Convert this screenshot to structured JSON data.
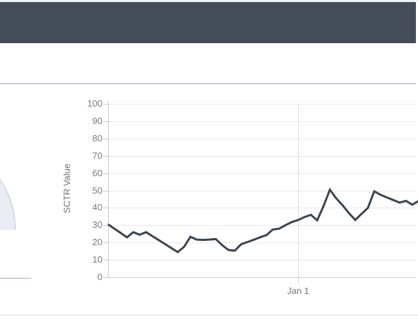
{
  "page": {
    "background": "#ffffff",
    "top_strip_color": "#eff2f6",
    "header": {
      "background": "#454c59"
    },
    "divider_top_color": "#c7cdd4",
    "divider_bottom_color": "#e0e4e8"
  },
  "gauge_panel": {
    "arc_fill": "#e9edf3",
    "arc_border": "#d4dce5",
    "baseline_color": "#b3c2cf"
  },
  "chart_data": {
    "type": "line",
    "title": "",
    "xlabel": "",
    "ylabel": "SCTR Value",
    "ylim": [
      0,
      100
    ],
    "y_ticks": [
      100,
      90,
      80,
      70,
      60,
      50,
      40,
      30,
      20,
      10,
      0
    ],
    "x_tick_labels": [
      "Jan 1"
    ],
    "x_tick_index": 30,
    "grid": true,
    "legend": "none",
    "line_color": "#3a4450",
    "grid_color": "#e8e8e8",
    "axis_color": "#c9c9c9",
    "vgrid_color": "#d9d9d9",
    "series": [
      {
        "name": "SCTR Value",
        "values": [
          30.5,
          28,
          25.5,
          23,
          26,
          24.5,
          26,
          23.7,
          21.4,
          19.1,
          16.8,
          14.5,
          17.5,
          23.3,
          21.7,
          21.5,
          21.7,
          22,
          18.5,
          15.7,
          15.3,
          19,
          20.3,
          21.6,
          23,
          24.3,
          27.5,
          28,
          30,
          31.8,
          33,
          34.7,
          36,
          32.8,
          41,
          50.5,
          45.5,
          41.5,
          37,
          33,
          36.5,
          40,
          49.5,
          47.5,
          46,
          44.5,
          43,
          44,
          41.8,
          44
        ]
      }
    ]
  }
}
